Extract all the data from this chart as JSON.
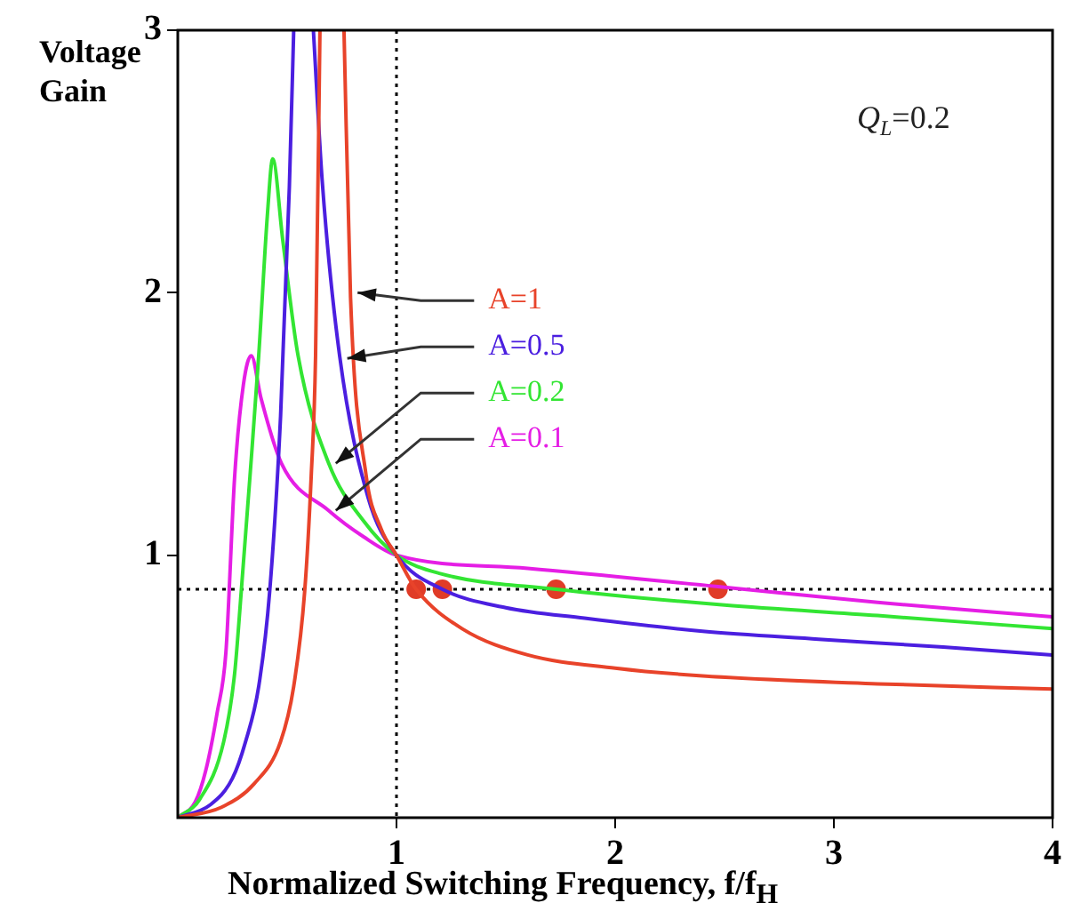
{
  "chart_data": {
    "type": "line",
    "ylabel": "Voltage Gain",
    "xlabel": "Normalized Switching Frequency, f/f$_{H}$",
    "annotations": [
      "Q$_{L}$=0.2"
    ],
    "xlim": [
      0,
      4
    ],
    "ylim": [
      0,
      3
    ],
    "xticks": [
      1,
      2,
      3,
      4
    ],
    "yticks": [
      1,
      2,
      3
    ],
    "grid": false,
    "line_style": "solid",
    "marker": "none",
    "ref_lines": [
      {
        "axis": "x",
        "value": 1,
        "color": "#000000",
        "line_style": "dotted"
      },
      {
        "axis": "y",
        "value": 0.87,
        "color": "#000000",
        "line_style": "dotted"
      }
    ],
    "series": [
      {
        "name": "A=1",
        "color": "#e8432a",
        "x": [
          0,
          0.2,
          0.35,
          0.47,
          0.53,
          0.58,
          0.61,
          0.63,
          0.65,
          0.7,
          0.76,
          0.79,
          0.86,
          0.93,
          1,
          1.09,
          1.3,
          1.6,
          2,
          2.4,
          3.2,
          4
        ],
        "values": [
          0,
          0.04,
          0.13,
          0.29,
          0.5,
          0.86,
          1.3,
          1.76,
          3,
          null,
          3,
          1.98,
          1.31,
          1.1,
          1,
          0.87,
          0.72,
          0.62,
          0.57,
          0.54,
          0.51,
          0.49
        ]
      },
      {
        "name": "A=0.5",
        "color": "#4b1fe0",
        "x": [
          0,
          0.15,
          0.25,
          0.31,
          0.37,
          0.42,
          0.47,
          0.51,
          0.53,
          0.58,
          0.62,
          0.66,
          0.74,
          0.87,
          1,
          1.21,
          1.5,
          1.86,
          2.4,
          2.93,
          3.5,
          4
        ],
        "values": [
          0,
          0.05,
          0.15,
          0.29,
          0.5,
          0.86,
          1.53,
          2.4,
          3,
          null,
          3,
          2.43,
          1.76,
          1.22,
          1,
          0.87,
          0.8,
          0.76,
          0.71,
          0.68,
          0.65,
          0.62
        ]
      },
      {
        "name": "A=0.2",
        "color": "#33e533",
        "x": [
          0,
          0.1,
          0.21,
          0.26,
          0.29,
          0.33,
          0.37,
          0.41,
          0.434,
          0.48,
          0.55,
          0.69,
          0.85,
          1,
          1.2,
          1.73,
          2.5,
          3.2,
          4
        ],
        "values": [
          0,
          0.07,
          0.29,
          0.55,
          0.86,
          1.3,
          1.76,
          2.3,
          2.51,
          2.2,
          1.76,
          1.35,
          1.13,
          1,
          0.93,
          0.87,
          0.81,
          0.77,
          0.72
        ]
      },
      {
        "name": "A=0.1",
        "color": "#e51ee5",
        "x": [
          0,
          0.08,
          0.128,
          0.18,
          0.22,
          0.26,
          0.3,
          0.336,
          0.38,
          0.474,
          0.69,
          0.85,
          1,
          1.6,
          2.47,
          3.2,
          4
        ],
        "values": [
          0,
          0.06,
          0.18,
          0.4,
          0.63,
          1.3,
          1.65,
          1.76,
          1.6,
          1.35,
          1.17,
          1.07,
          1,
          0.95,
          0.88,
          0.82,
          0.765
        ]
      },
      {
        "type": "scatter",
        "color": "#e03c28",
        "marker": "circle",
        "x": [
          1.09,
          1.21,
          1.73,
          2.47
        ],
        "values": [
          0.87,
          0.87,
          0.87,
          0.87
        ]
      }
    ]
  }
}
